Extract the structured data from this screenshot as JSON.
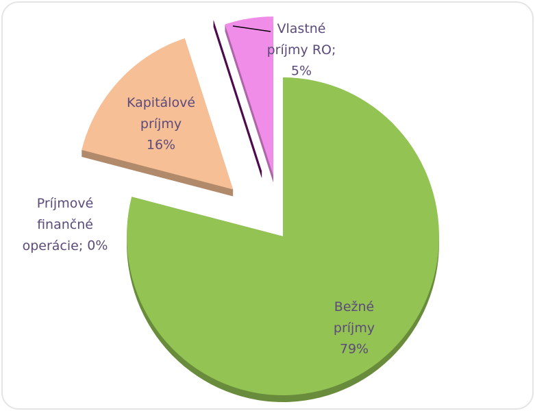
{
  "chart_data": {
    "type": "pie",
    "categories": [
      "Bežné príjmy",
      "Kapitálové príjmy",
      "Príjmové finančné operácie;",
      "Vlastné príjmy RO;"
    ],
    "values": [
      79,
      16,
      0,
      5
    ],
    "value_labels": [
      "79%",
      "16%",
      "0%",
      "5%"
    ],
    "colors": [
      "#92c353",
      "#f6bf96",
      "#6b0f6b",
      "#f08de8"
    ]
  }
}
